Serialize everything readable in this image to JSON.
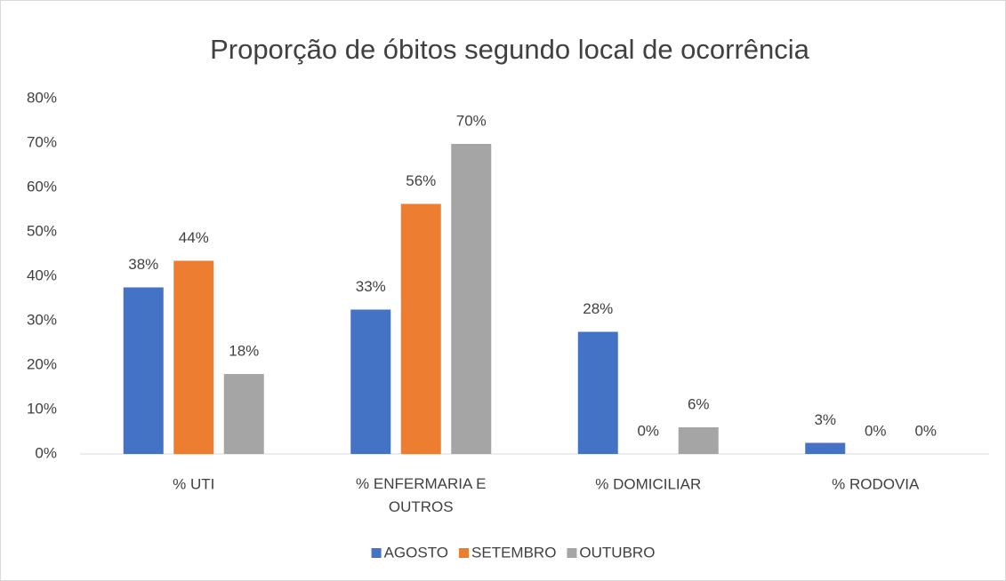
{
  "chart_data": {
    "type": "bar",
    "title": "Proporção de óbitos segundo local de ocorrência",
    "categories": [
      "% UTI",
      "% ENFERMARIA E OUTROS",
      "% DOMICILIAR",
      "% RODOVIA"
    ],
    "series": [
      {
        "name": "AGOSTO",
        "color": "#4472c4",
        "values": [
          37.5,
          32.5,
          27.5,
          2.5
        ],
        "value_labels": [
          "38%",
          "33%",
          "28%",
          "3%"
        ]
      },
      {
        "name": "SETEMBRO",
        "color": "#ed7d31",
        "values": [
          43.5,
          56.3,
          0,
          0
        ],
        "value_labels": [
          "44%",
          "56%",
          "0%",
          "0%"
        ]
      },
      {
        "name": "OUTUBRO",
        "color": "#a5a5a5",
        "values": [
          18,
          69.8,
          6,
          0
        ],
        "value_labels": [
          "18%",
          "70%",
          "6%",
          "0%"
        ]
      }
    ],
    "ylim": [
      0,
      80
    ],
    "yticks": [
      {
        "value": 0,
        "label": "0%"
      },
      {
        "value": 10,
        "label": "10%"
      },
      {
        "value": 20,
        "label": "20%"
      },
      {
        "value": 30,
        "label": "30%"
      },
      {
        "value": 40,
        "label": "40%"
      },
      {
        "value": 50,
        "label": "50%"
      },
      {
        "value": 60,
        "label": "60%"
      },
      {
        "value": 70,
        "label": "70%"
      },
      {
        "value": 80,
        "label": "80%"
      }
    ],
    "grid": false,
    "legend": "bottom"
  }
}
